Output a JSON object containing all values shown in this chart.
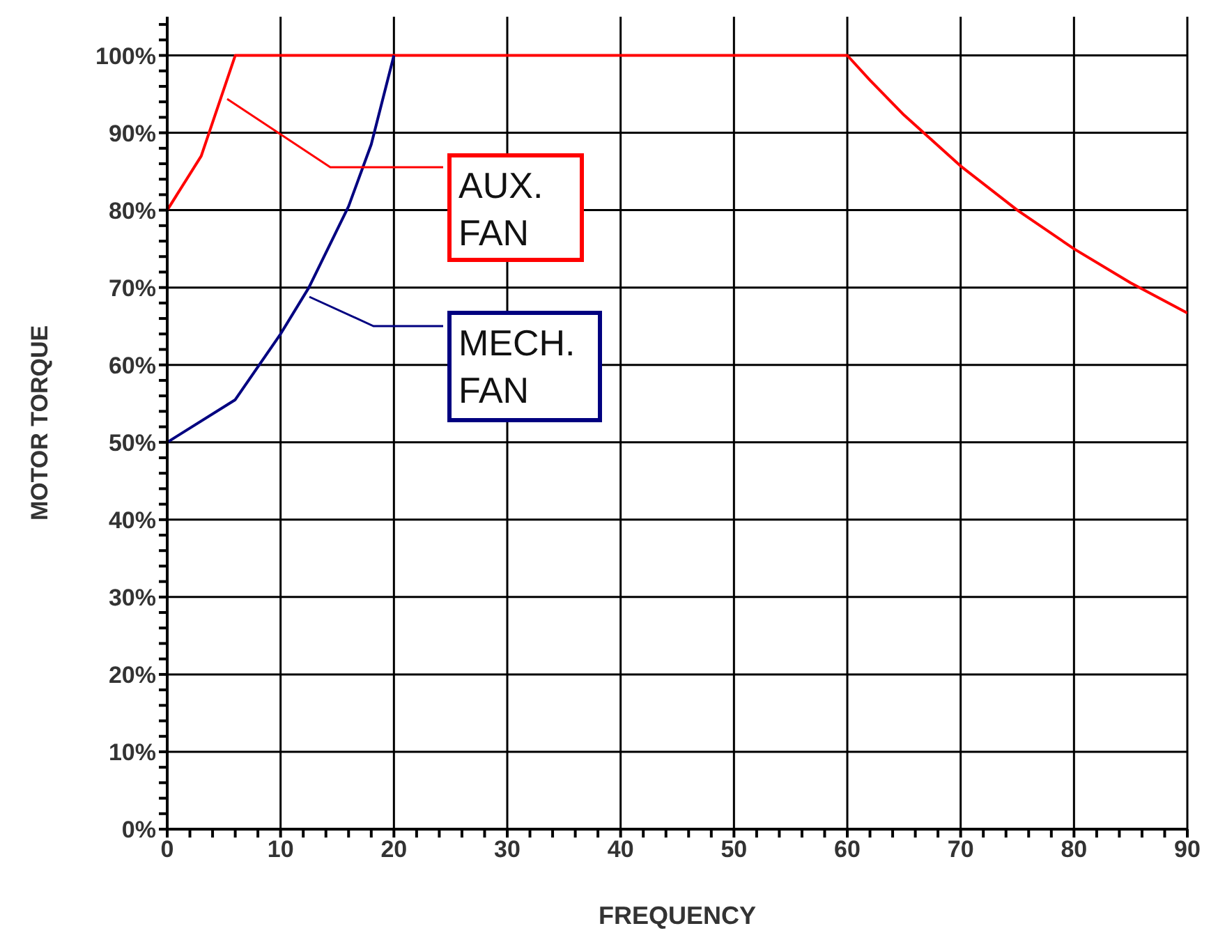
{
  "chart_data": {
    "type": "line",
    "xlabel": "FREQUENCY",
    "ylabel": "MOTOR TORQUE",
    "xlim": [
      0,
      90
    ],
    "xticks": [
      0,
      {
        "value": 2,
        "label": null
      },
      {
        "value": 4,
        "label": null
      },
      {
        "value": 6,
        "label": null
      },
      {
        "value": 8,
        "label": null
      },
      10,
      {
        "value": 12,
        "label": null
      },
      {
        "value": 14,
        "label": null
      },
      {
        "value": 16,
        "label": null
      },
      {
        "value": 18,
        "label": null
      },
      20,
      {
        "value": 22,
        "label": null
      },
      {
        "value": 24,
        "label": null
      },
      {
        "value": 26,
        "label": null
      },
      {
        "value": 28,
        "label": null
      },
      30,
      {
        "value": 32,
        "label": null
      },
      {
        "value": 34,
        "label": null
      },
      {
        "value": 36,
        "label": null
      },
      {
        "value": 38,
        "label": null
      },
      40,
      {
        "value": 42,
        "label": null
      },
      {
        "value": 44,
        "label": null
      },
      {
        "value": 46,
        "label": null
      },
      {
        "value": 48,
        "label": null
      },
      50,
      {
        "value": 52,
        "label": null
      },
      {
        "value": 54,
        "label": null
      },
      {
        "value": 56,
        "label": null
      },
      {
        "value": 58,
        "label": null
      },
      60,
      {
        "value": 62,
        "label": null
      },
      {
        "value": 64,
        "label": null
      },
      {
        "value": 66,
        "label": null
      },
      {
        "value": 68,
        "label": null
      },
      70,
      {
        "value": 72,
        "label": null
      },
      {
        "value": 74,
        "label": null
      },
      {
        "value": 76,
        "label": null
      },
      {
        "value": 78,
        "label": null
      },
      80,
      {
        "value": 82,
        "label": null
      },
      {
        "value": 84,
        "label": null
      },
      {
        "value": 86,
        "label": null
      },
      {
        "value": 88,
        "label": null
      },
      90
    ],
    "ylim": [
      0,
      105
    ],
    "yticks": [
      {
        "value": 0,
        "label": "0%"
      },
      {
        "value": 2,
        "label": null
      },
      {
        "value": 4,
        "label": null
      },
      {
        "value": 6,
        "label": null
      },
      {
        "value": 8,
        "label": null
      },
      {
        "value": 10,
        "label": "10%"
      },
      {
        "value": 12,
        "label": null
      },
      {
        "value": 14,
        "label": null
      },
      {
        "value": 16,
        "label": null
      },
      {
        "value": 18,
        "label": null
      },
      {
        "value": 20,
        "label": "20%"
      },
      {
        "value": 22,
        "label": null
      },
      {
        "value": 24,
        "label": null
      },
      {
        "value": 26,
        "label": null
      },
      {
        "value": 28,
        "label": null
      },
      {
        "value": 30,
        "label": "30%"
      },
      {
        "value": 32,
        "label": null
      },
      {
        "value": 34,
        "label": null
      },
      {
        "value": 36,
        "label": null
      },
      {
        "value": 38,
        "label": null
      },
      {
        "value": 40,
        "label": "40%"
      },
      {
        "value": 42,
        "label": null
      },
      {
        "value": 44,
        "label": null
      },
      {
        "value": 46,
        "label": null
      },
      {
        "value": 48,
        "label": null
      },
      {
        "value": 50,
        "label": "50%"
      },
      {
        "value": 52,
        "label": null
      },
      {
        "value": 54,
        "label": null
      },
      {
        "value": 56,
        "label": null
      },
      {
        "value": 58,
        "label": null
      },
      {
        "value": 60,
        "label": "60%"
      },
      {
        "value": 62,
        "label": null
      },
      {
        "value": 64,
        "label": null
      },
      {
        "value": 66,
        "label": null
      },
      {
        "value": 68,
        "label": null
      },
      {
        "value": 70,
        "label": "70%"
      },
      {
        "value": 72,
        "label": null
      },
      {
        "value": 74,
        "label": null
      },
      {
        "value": 76,
        "label": null
      },
      {
        "value": 78,
        "label": null
      },
      {
        "value": 80,
        "label": "80%"
      },
      {
        "value": 82,
        "label": null
      },
      {
        "value": 84,
        "label": null
      },
      {
        "value": 86,
        "label": null
      },
      {
        "value": 88,
        "label": null
      },
      {
        "value": 90,
        "label": "90%"
      },
      {
        "value": 92,
        "label": null
      },
      {
        "value": 94,
        "label": null
      },
      {
        "value": 96,
        "label": null
      },
      {
        "value": 98,
        "label": null
      },
      {
        "value": 100,
        "label": "100%"
      },
      {
        "value": 102,
        "label": null
      },
      {
        "value": 104,
        "label": null
      }
    ],
    "grid": true,
    "marker": "none",
    "line_style": "solid",
    "series": [
      {
        "name": "AUX. FAN",
        "color": "#ff0000",
        "x": [
          0,
          3,
          6,
          60,
          62,
          65,
          70,
          75,
          80,
          85,
          90
        ],
        "values": [
          80,
          87,
          100,
          100,
          96.8,
          92.3,
          85.7,
          80,
          75,
          70.6,
          66.7
        ]
      },
      {
        "name": "MECH. FAN",
        "color": "#000080",
        "x": [
          0,
          6,
          10,
          12.5,
          16,
          18,
          20
        ],
        "values": [
          50,
          55.5,
          64,
          70,
          80.5,
          88.5,
          100
        ]
      }
    ]
  }
}
